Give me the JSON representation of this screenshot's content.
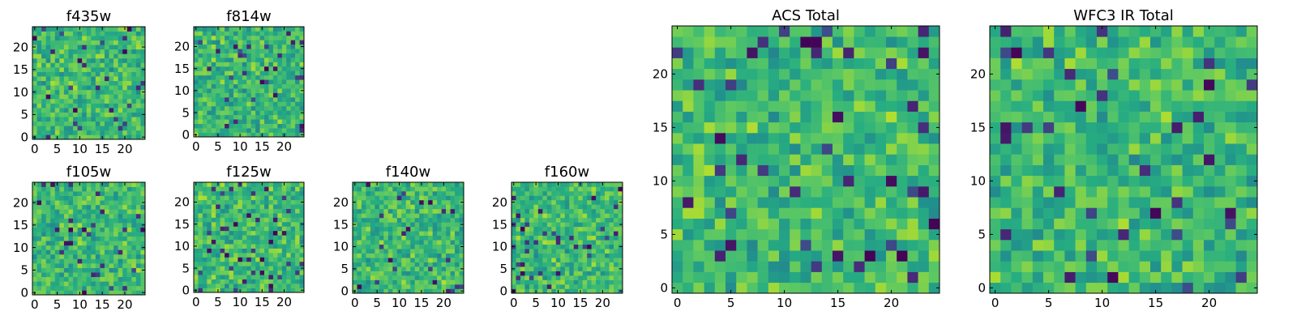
{
  "chart_data": [
    {
      "type": "heatmap",
      "title": "f435w",
      "colormap": "viridis",
      "grid_shape": [
        25,
        25
      ],
      "x_ticks": [
        "0",
        "5",
        "10",
        "15",
        "20"
      ],
      "y_ticks": [
        "0",
        "5",
        "10",
        "15",
        "20"
      ],
      "xlim": [
        -0.5,
        24.5
      ],
      "ylim": [
        -0.5,
        24.5
      ],
      "grid": false
    },
    {
      "type": "heatmap",
      "title": "f814w",
      "colormap": "viridis",
      "grid_shape": [
        25,
        25
      ],
      "x_ticks": [
        "0",
        "5",
        "10",
        "15",
        "20"
      ],
      "y_ticks": [
        "0",
        "5",
        "10",
        "15",
        "20"
      ],
      "xlim": [
        -0.5,
        24.5
      ],
      "ylim": [
        -0.5,
        24.5
      ],
      "grid": false
    },
    {
      "type": "heatmap",
      "title": "f105w",
      "colormap": "viridis",
      "grid_shape": [
        25,
        25
      ],
      "x_ticks": [
        "0",
        "5",
        "10",
        "15",
        "20"
      ],
      "y_ticks": [
        "0",
        "5",
        "10",
        "15",
        "20"
      ],
      "xlim": [
        -0.5,
        24.5
      ],
      "ylim": [
        -0.5,
        24.5
      ],
      "grid": false
    },
    {
      "type": "heatmap",
      "title": "f125w",
      "colormap": "viridis",
      "grid_shape": [
        25,
        25
      ],
      "x_ticks": [
        "0",
        "5",
        "10",
        "15",
        "20"
      ],
      "y_ticks": [
        "0",
        "5",
        "10",
        "15",
        "20"
      ],
      "xlim": [
        -0.5,
        24.5
      ],
      "ylim": [
        -0.5,
        24.5
      ],
      "grid": false
    },
    {
      "type": "heatmap",
      "title": "f140w",
      "colormap": "viridis",
      "grid_shape": [
        25,
        25
      ],
      "x_ticks": [
        "0",
        "5",
        "10",
        "15",
        "20"
      ],
      "y_ticks": [
        "0",
        "5",
        "10",
        "15",
        "20"
      ],
      "xlim": [
        -0.5,
        24.5
      ],
      "ylim": [
        -0.5,
        24.5
      ],
      "grid": false
    },
    {
      "type": "heatmap",
      "title": "f160w",
      "colormap": "viridis",
      "grid_shape": [
        25,
        25
      ],
      "x_ticks": [
        "0",
        "5",
        "10",
        "15",
        "20"
      ],
      "y_ticks": [
        "0",
        "5",
        "10",
        "15",
        "20"
      ],
      "xlim": [
        -0.5,
        24.5
      ],
      "ylim": [
        -0.5,
        24.5
      ],
      "grid": false
    },
    {
      "type": "heatmap",
      "title": "ACS Total",
      "colormap": "viridis",
      "grid_shape": [
        25,
        25
      ],
      "x_ticks": [
        "0",
        "5",
        "10",
        "15",
        "20"
      ],
      "y_ticks": [
        "0",
        "5",
        "10",
        "15",
        "20"
      ],
      "xlim": [
        -0.5,
        24.5
      ],
      "ylim": [
        -0.5,
        24.5
      ],
      "grid": false
    },
    {
      "type": "heatmap",
      "title": "WFC3 IR Total",
      "colormap": "viridis",
      "grid_shape": [
        25,
        25
      ],
      "x_ticks": [
        "0",
        "5",
        "10",
        "15",
        "20"
      ],
      "y_ticks": [
        "0",
        "5",
        "10",
        "15",
        "20"
      ],
      "xlim": [
        -0.5,
        24.5
      ],
      "ylim": [
        -0.5,
        24.5
      ],
      "grid": false
    }
  ]
}
